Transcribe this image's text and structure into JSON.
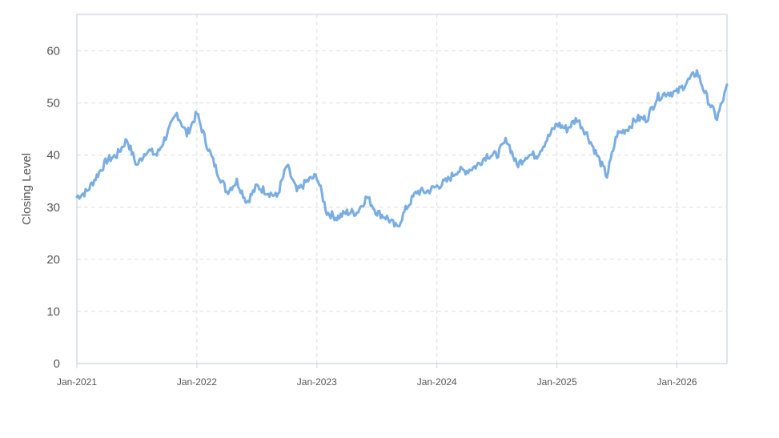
{
  "chart_data": {
    "type": "line",
    "title": "",
    "xlabel": "",
    "ylabel": "Closing Level",
    "x_ticks": [
      "Jan-2021",
      "Jan-2022",
      "Jan-2023",
      "Jan-2024",
      "Jan-2025",
      "Jan-2026"
    ],
    "xlim": [
      "2021-01",
      "2026-06"
    ],
    "ylim": [
      0,
      67
    ],
    "y_ticks": [
      0,
      10,
      20,
      30,
      40,
      50,
      60
    ],
    "grid": true,
    "legend": "none",
    "line_color": "#7aaee3",
    "x": [
      "2021-01",
      "2021-02",
      "2021-03",
      "2021-04",
      "2021-05",
      "2021-06",
      "2021-07",
      "2021-08",
      "2021-09",
      "2021-10",
      "2021-11",
      "2021-12",
      "2022-01",
      "2022-02",
      "2022-03",
      "2022-04",
      "2022-05",
      "2022-06",
      "2022-07",
      "2022-08",
      "2022-09",
      "2022-10",
      "2022-11",
      "2022-12",
      "2023-01",
      "2023-02",
      "2023-03",
      "2023-04",
      "2023-05",
      "2023-06",
      "2023-07",
      "2023-08",
      "2023-09",
      "2023-10",
      "2023-11",
      "2023-12",
      "2024-01",
      "2024-02",
      "2024-03",
      "2024-04",
      "2024-05",
      "2024-06",
      "2024-07",
      "2024-08",
      "2024-09",
      "2024-10",
      "2024-11",
      "2024-12",
      "2025-01",
      "2025-02",
      "2025-03",
      "2025-04",
      "2025-05",
      "2025-06",
      "2025-07",
      "2025-08",
      "2025-09",
      "2025-10",
      "2025-11",
      "2025-12",
      "2026-01",
      "2026-02",
      "2026-03",
      "2026-04",
      "2026-05",
      "2026-06"
    ],
    "series": [
      {
        "values": [
          32,
          33,
          36,
          39,
          40,
          43,
          38,
          41,
          40,
          44,
          48,
          44,
          48,
          42,
          37,
          33,
          35,
          31,
          34,
          33,
          32,
          38,
          33,
          35,
          36,
          29,
          28,
          29,
          29,
          32,
          29,
          28,
          26,
          30,
          33,
          33,
          34,
          35,
          37,
          37,
          38,
          40,
          40,
          43,
          38,
          40,
          40,
          43,
          46,
          45,
          47,
          44,
          40,
          36,
          44,
          45,
          47,
          47,
          51,
          52,
          52,
          54,
          56,
          51,
          47,
          53
        ]
      }
    ]
  }
}
